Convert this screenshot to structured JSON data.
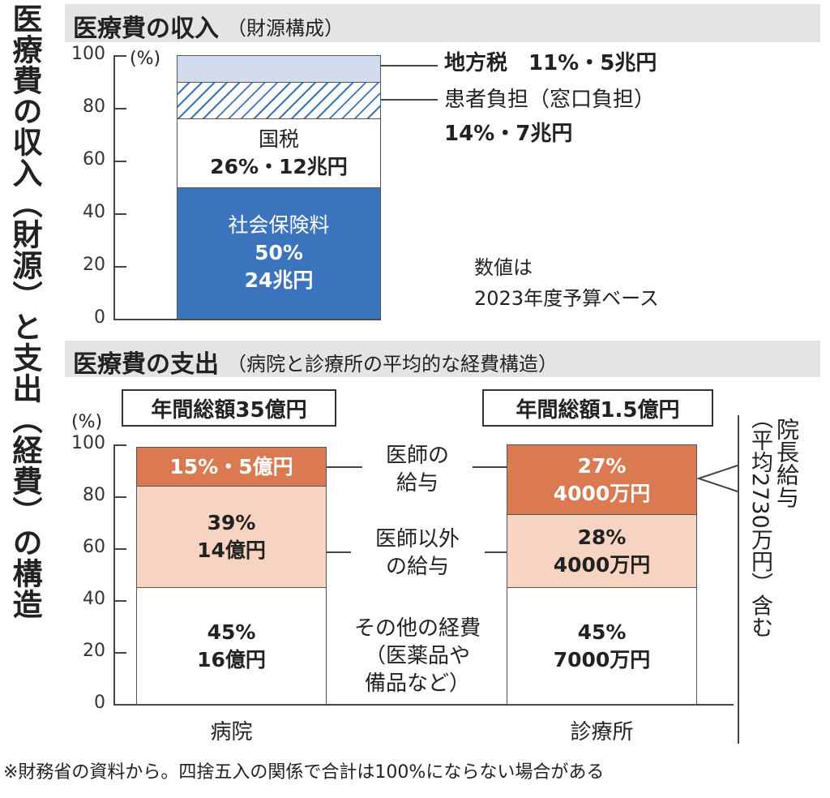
{
  "main_title": "医療費の収入（財源）と支出（経費）の構造",
  "revenue": {
    "title": "医療費の収入",
    "subtitle": "（財源構成）",
    "unit": "(%)",
    "outside_labels": {
      "local_tax": "地方税　11%・5兆円",
      "patient_1": "患者負担（窓口負担）",
      "patient_2": "14%・7兆円"
    },
    "note": [
      "数値は",
      "2023年度予算ベース"
    ]
  },
  "expense": {
    "title": "医療費の支出",
    "subtitle": "（病院と診療所の平均的な経費構造）",
    "unit": "(%)",
    "totals": [
      "年間総額35億円",
      "年間総額1.5億円"
    ],
    "middle_labels": {
      "doctor": [
        "医師の",
        "給与"
      ],
      "non_doctor": [
        "医師以外",
        "の給与"
      ],
      "other": [
        "その他の経費",
        "（医薬品や",
        "備品など）"
      ]
    },
    "bracket_label": "院長給与",
    "bracket_sub": "（平均2730万円）含む"
  },
  "footnote": "※財務省の資料から。四捨五入の関係で合計は100%にならない場合がある",
  "chart_data": [
    {
      "type": "bar",
      "stacked": true,
      "title": "医療費の収入",
      "ylim": [
        0,
        100
      ],
      "yticks": [
        "0",
        "20",
        "40",
        "60",
        "80",
        "100"
      ],
      "categories": [
        ""
      ],
      "series": [
        {
          "name": "社会保険料",
          "value": 50,
          "color": "#3b74bc",
          "text_color": "#ffffff",
          "lines": [
            "社会保険料",
            "50%",
            "24兆円"
          ]
        },
        {
          "name": "国税",
          "value": 26,
          "color": "#ffffff",
          "text_color": "#222222",
          "lines": [
            "国税",
            "26%・12兆円"
          ]
        },
        {
          "name": "患者負担（窓口負担）",
          "value": 14,
          "color": "hatch-blue",
          "lines": []
        },
        {
          "name": "地方税",
          "value": 11,
          "color": "#d2dbee",
          "lines": []
        }
      ]
    },
    {
      "type": "bar",
      "stacked": true,
      "title": "医療費の支出",
      "ylim": [
        0,
        100
      ],
      "yticks": [
        "0",
        "20",
        "40",
        "60",
        "80",
        "100"
      ],
      "categories": [
        "病院",
        "診療所"
      ],
      "series": [
        {
          "name": "その他の経費",
          "values": [
            45,
            45
          ],
          "color": "#ffffff",
          "text_color": "#222222",
          "lines": [
            [
              "45%",
              "16億円"
            ],
            [
              "45%",
              "7000万円"
            ]
          ]
        },
        {
          "name": "医師以外の給与",
          "values": [
            39,
            28
          ],
          "color": "#f6d4c1",
          "text_color": "#222222",
          "lines": [
            [
              "39%",
              "14億円"
            ],
            [
              "28%",
              "4000万円"
            ]
          ]
        },
        {
          "name": "医師の給与",
          "values": [
            15,
            27
          ],
          "color": "#db7a50",
          "text_color": "#ffffff",
          "lines": [
            [
              "15%・5億円"
            ],
            [
              "27%",
              "4000万円"
            ]
          ]
        }
      ]
    }
  ]
}
